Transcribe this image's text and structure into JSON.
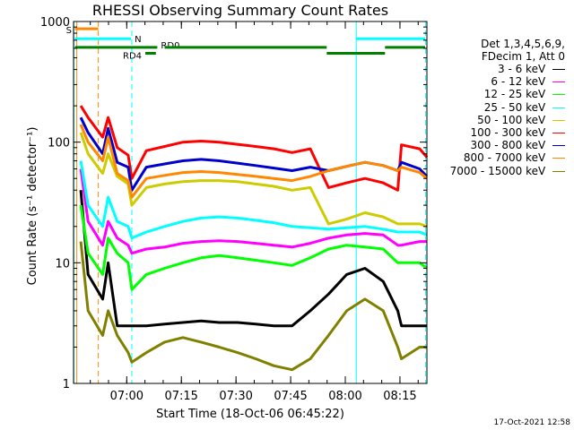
{
  "chart_data": {
    "type": "line",
    "title": "RHESSI Observing Summary Count Rates",
    "xlabel": "Start Time (18-Oct-06 06:45:22)",
    "ylabel": "Count Rate (s⁻¹ detector⁻¹)",
    "yscale": "log",
    "ylim": [
      1,
      1000
    ],
    "xlim_minutes_from_start": [
      0,
      97
    ],
    "y_ticks": [
      "1",
      "10",
      "100",
      "1000"
    ],
    "x_ticks": [
      {
        "label": "07:00",
        "minute": 14.6
      },
      {
        "label": "07:15",
        "minute": 29.6
      },
      {
        "label": "07:30",
        "minute": 44.6
      },
      {
        "label": "07:45",
        "minute": 59.6
      },
      {
        "label": "08:00",
        "minute": 74.6
      },
      {
        "label": "08:15",
        "minute": 89.6
      }
    ],
    "legend_header": [
      "Det 1,3,4,5,6,9,",
      "FDecim 1, Att 0"
    ],
    "x": [
      0,
      1,
      2,
      4,
      8,
      9.5,
      12,
      15,
      16,
      20,
      25,
      30,
      35,
      40,
      45,
      50,
      55,
      60,
      65,
      70,
      75,
      80,
      85,
      89,
      90,
      95,
      97
    ],
    "series": [
      {
        "name": "3 - 6 keV",
        "color": "#000000",
        "values": [
          null,
          null,
          40,
          8,
          5,
          10,
          3,
          3,
          3,
          3,
          3.1,
          3.2,
          3.3,
          3.2,
          3.2,
          3.1,
          3,
          3,
          4,
          5.5,
          8,
          9,
          7,
          4,
          3,
          3,
          3
        ]
      },
      {
        "name": "6 - 12 keV",
        "color": "#ff00ff",
        "values": [
          null,
          null,
          60,
          22,
          14,
          22,
          16,
          14,
          12,
          13,
          13.5,
          14.5,
          15,
          15.2,
          15,
          14.5,
          14,
          13.5,
          14.5,
          16,
          17,
          17.5,
          17,
          14,
          14,
          15,
          15
        ]
      },
      {
        "name": "12 - 25 keV",
        "color": "#00ff00",
        "values": [
          null,
          null,
          30,
          12,
          8,
          16,
          12,
          10,
          6,
          8,
          9,
          10,
          11,
          11.5,
          11,
          10.5,
          10,
          9.5,
          11,
          13,
          14,
          13.5,
          13,
          10,
          10,
          10,
          9
        ]
      },
      {
        "name": "25 - 50 keV",
        "color": "#00ffff",
        "values": [
          null,
          null,
          70,
          30,
          20,
          35,
          22,
          20,
          16,
          18,
          20,
          22,
          23.5,
          24,
          23.5,
          22.5,
          21.5,
          20,
          19.5,
          19,
          19.5,
          20,
          19,
          18,
          18,
          18,
          17
        ]
      },
      {
        "name": "50 - 100 keV",
        "color": "#cccc00",
        "values": [
          null,
          null,
          120,
          80,
          55,
          80,
          52,
          45,
          30,
          42,
          45,
          47,
          48,
          48,
          47,
          45,
          43,
          40,
          42,
          21,
          23,
          26,
          24,
          21,
          21,
          21,
          20
        ]
      },
      {
        "name": "100 - 300 keV",
        "color": "#ff0000",
        "values": [
          null,
          null,
          200,
          160,
          110,
          160,
          90,
          78,
          50,
          85,
          92,
          100,
          102,
          100,
          96,
          92,
          88,
          82,
          88,
          42,
          46,
          50,
          46,
          40,
          95,
          88,
          75
        ]
      },
      {
        "name": "300 - 800 keV",
        "color": "#0000cc",
        "values": [
          null,
          null,
          160,
          120,
          80,
          130,
          68,
          62,
          40,
          62,
          66,
          70,
          72,
          70,
          67,
          64,
          61,
          58,
          62,
          58,
          63,
          68,
          64,
          58,
          68,
          60,
          52
        ]
      },
      {
        "name": "800 - 7000 keV",
        "color": "#ff8800",
        "values": [
          null,
          null,
          140,
          100,
          70,
          110,
          55,
          48,
          35,
          50,
          53,
          56,
          57,
          56,
          54,
          52,
          50,
          48,
          52,
          58,
          63,
          68,
          64,
          58,
          62,
          56,
          50
        ]
      },
      {
        "name": "7000 - 15000 keV",
        "color": "#808000",
        "values": [
          null,
          null,
          15,
          4,
          2.5,
          4,
          2.5,
          1.8,
          1.5,
          1.8,
          2.2,
          2.4,
          2.2,
          2,
          1.8,
          1.6,
          1.4,
          1.3,
          1.6,
          2.5,
          4,
          5,
          4,
          2,
          1.6,
          2,
          2
        ]
      }
    ],
    "segment_bars": [
      {
        "label": "S",
        "color": "#ff8800",
        "start": 0.4,
        "end": 6.8,
        "y": 870
      },
      {
        "label": "N",
        "color": "#00ffff",
        "start": 0.4,
        "end": 15.8,
        "y": 720
      },
      {
        "label": "",
        "color": "#00ffff",
        "start": 77.5,
        "end": 96.5,
        "y": 720
      },
      {
        "label": "RD0",
        "color": "#008000",
        "start": 0.4,
        "end": 23,
        "y": 610
      },
      {
        "label": "",
        "color": "#008000",
        "start": 25,
        "end": 69.5,
        "y": 610
      },
      {
        "label": "",
        "color": "#008000",
        "start": 85.5,
        "end": 96.5,
        "y": 610
      },
      {
        "label": "RD4",
        "color": "#008000",
        "start": 19.7,
        "end": 22.6,
        "y": 545
      },
      {
        "label": "",
        "color": "#008000",
        "start": 69.5,
        "end": 85.5,
        "y": 545
      }
    ],
    "vertical_markers": [
      {
        "minute": 0.1,
        "color": "#00ffff",
        "style": "solid"
      },
      {
        "minute": 0.9,
        "color": "#ff8800",
        "style": "solid"
      },
      {
        "minute": 6.8,
        "color": "#ff8800",
        "style": "dashed"
      },
      {
        "minute": 16.0,
        "color": "#00ffff",
        "style": "dashed"
      },
      {
        "minute": 77.6,
        "color": "#00ffff",
        "style": "solid"
      },
      {
        "minute": 96.6,
        "color": "#00ffff",
        "style": "dashed"
      }
    ],
    "grid": false,
    "legend_position": "right"
  },
  "timestamp": "17-Oct-2021 12:58"
}
